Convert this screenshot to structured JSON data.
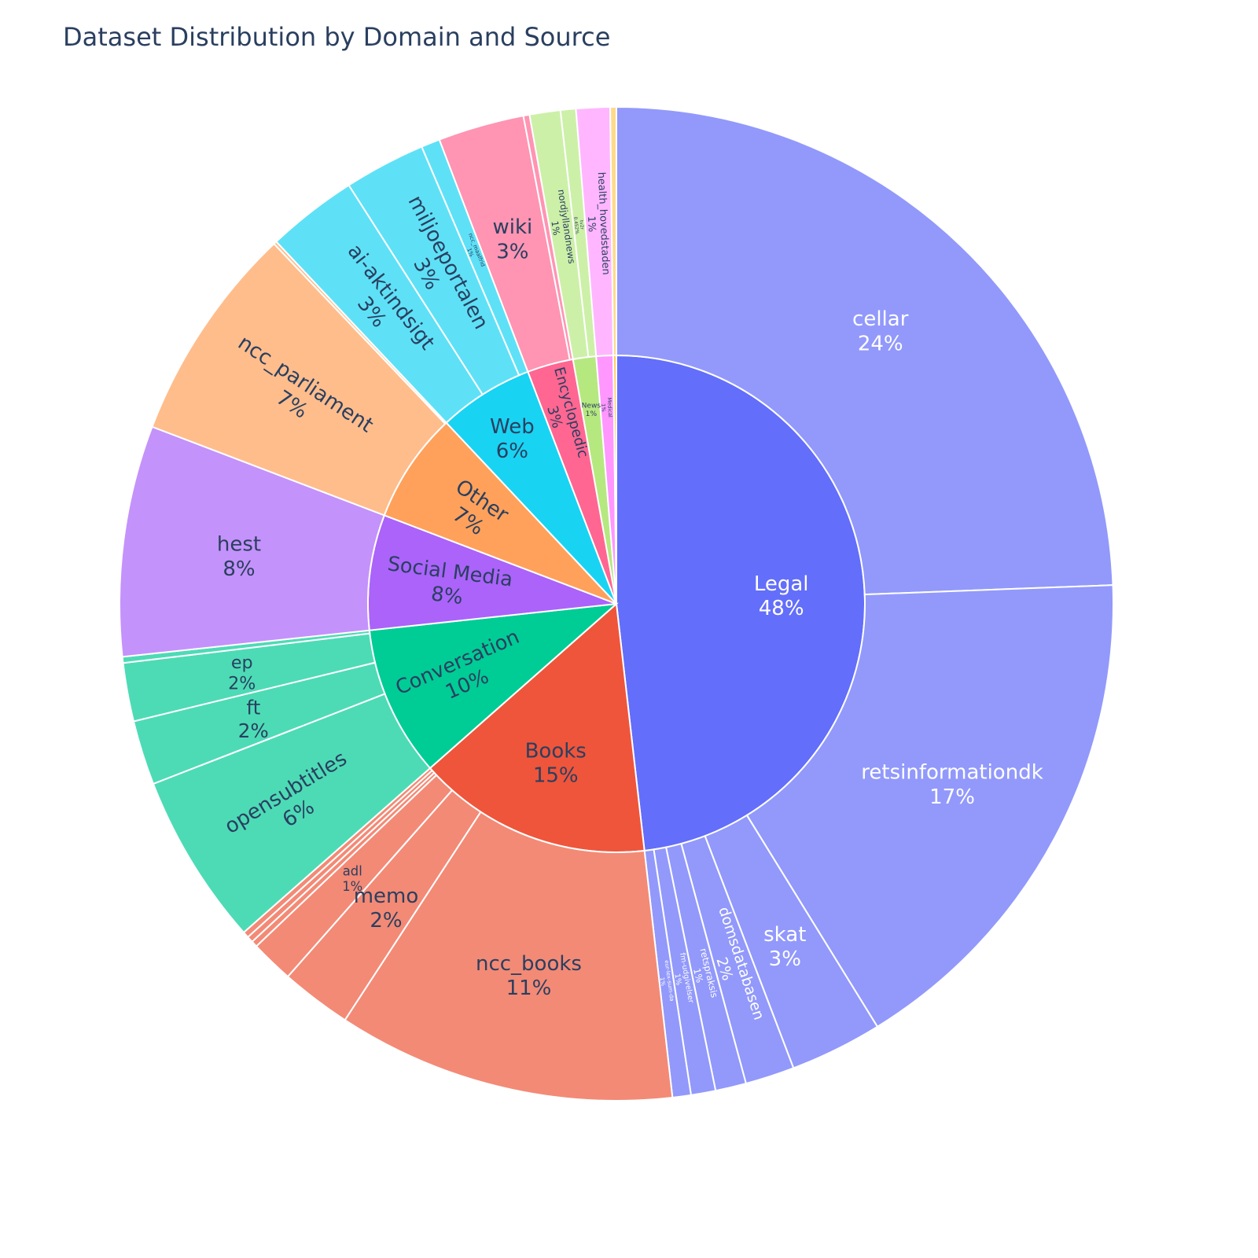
{
  "chart_data": {
    "type": "sunburst",
    "title": "Dataset Distribution by Domain and Source",
    "domains": [
      {
        "name": "Legal",
        "label": "48%",
        "value": 48.2,
        "color": "#636efa",
        "child_color": "#9299fb",
        "text_color": "#ffffff",
        "children": [
          {
            "name": "cellar",
            "label": "24%",
            "value": 24.4
          },
          {
            "name": "retsinformationdk",
            "label": "17%",
            "value": 16.8
          },
          {
            "name": "skat",
            "label": "3%",
            "value": 3.0
          },
          {
            "name": "domsdatabasen",
            "label": "2%",
            "value": 1.6
          },
          {
            "name": "retspraksis",
            "label": "1%",
            "value": 1.0
          },
          {
            "name": "fm-udgivelser",
            "label": "1%",
            "value": 0.8
          },
          {
            "name": "eur-lex-sum-da",
            "label": "1%",
            "value": 0.6
          }
        ]
      },
      {
        "name": "Books",
        "label": "15%",
        "value": 15.3,
        "color": "#ef553b",
        "child_color": "#f38a76",
        "text_color": "#2a3f5f",
        "children": [
          {
            "name": "ncc_books",
            "label": "11%",
            "value": 11.0
          },
          {
            "name": "memo",
            "label": "2%",
            "value": 2.3
          },
          {
            "name": "adl",
            "label": "1%",
            "value": 1.4
          },
          {
            "name": "",
            "label": "",
            "value": 0.2
          },
          {
            "name": "",
            "label": "",
            "value": 0.2
          },
          {
            "name": "",
            "label": "",
            "value": 0.2
          }
        ]
      },
      {
        "name": "Conversation",
        "label": "10%",
        "value": 9.8,
        "color": "#00cc96",
        "child_color": "#4ddbb6",
        "text_color": "#2a3f5f",
        "children": [
          {
            "name": "opensubtitles",
            "label": "6%",
            "value": 5.6
          },
          {
            "name": "ft",
            "label": "2%",
            "value": 2.1
          },
          {
            "name": "ep",
            "label": "2%",
            "value": 1.9
          },
          {
            "name": "",
            "label": "",
            "value": 0.2
          }
        ]
      },
      {
        "name": "Social Media",
        "label": "8%",
        "value": 7.5,
        "color": "#ab63fa",
        "child_color": "#c492fb",
        "text_color": "#2a3f5f",
        "children": [
          {
            "name": "hest",
            "label": "8%",
            "value": 7.5
          }
        ]
      },
      {
        "name": "Other",
        "label": "7%",
        "value": 7.2,
        "color": "#ffa15a",
        "child_color": "#ffbd8c",
        "text_color": "#2a3f5f",
        "children": [
          {
            "name": "ncc_parliament",
            "label": "7%",
            "value": 7.1
          },
          {
            "name": "",
            "label": "",
            "value": 0.1
          }
        ]
      },
      {
        "name": "Web",
        "label": "6%",
        "value": 6.2,
        "color": "#19d3f3",
        "child_color": "#5ee1f7",
        "text_color": "#2a3f5f",
        "children": [
          {
            "name": "ai-aktindsigt",
            "label": "3%",
            "value": 2.9
          },
          {
            "name": "miljoeportalen",
            "label": "3%",
            "value": 2.6
          },
          {
            "name": "ncc_maalfrid",
            "label": "1%",
            "value": 0.6
          }
        ]
      },
      {
        "name": "Encyclopedic",
        "label": "3%",
        "value": 3.0,
        "color": "#ff6692",
        "child_color": "#ff94b3",
        "text_color": "#2a3f5f",
        "children": [
          {
            "name": "wiki",
            "label": "3%",
            "value": 2.8
          },
          {
            "name": "",
            "label": "",
            "value": 0.2
          }
        ]
      },
      {
        "name": "News",
        "label": "1%",
        "value": 1.5,
        "color": "#b6e880",
        "child_color": "#cdf0a8",
        "text_color": "#2a3f5f",
        "children": [
          {
            "name": "nordjyllandnews",
            "label": "1%",
            "value": 1.0
          },
          {
            "name": "tv2r",
            "label": "0.452%",
            "value": 0.5
          }
        ]
      },
      {
        "name": "Medical",
        "label": "1%",
        "value": 1.1,
        "color": "#ff97ff",
        "child_color": "#ffb6ff",
        "text_color": "#2a3f5f",
        "children": [
          {
            "name": "health_hovedstaden",
            "label": "1%",
            "value": 1.1
          }
        ]
      },
      {
        "name": "",
        "label": "",
        "value": 0.2,
        "color": "#fecb52",
        "child_color": "#fedb8a",
        "text_color": "#2a3f5f",
        "children": [
          {
            "name": "",
            "label": "",
            "value": 0.2
          }
        ]
      }
    ]
  }
}
